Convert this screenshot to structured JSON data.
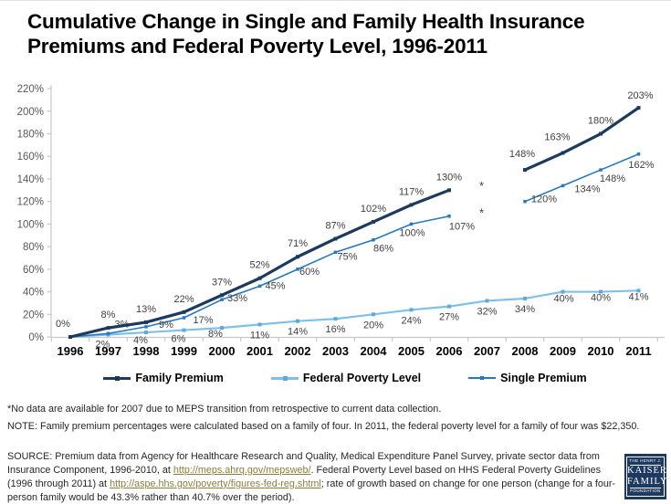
{
  "title": "Cumulative Change in Single and Family Health Insurance Premiums and Federal Poverty Level, 1996-2011",
  "colors": {
    "family": "#1B3A5E",
    "single": "#2779BE",
    "fpl": "#7EC0E9",
    "fpl_marker": "#5FA9DC",
    "axis": "#C8C8C8",
    "data_label": "#404040",
    "year_label": "#000000",
    "ytick_label": "#595959",
    "link": "#8C7D3A",
    "logo_bg": "#1E3A61"
  },
  "chart_data": {
    "type": "line",
    "title": "Cumulative Change in Single and Family Health Insurance Premiums and Federal Poverty Level, 1996-2011",
    "x": [
      "1996",
      "1997",
      "1998",
      "1999",
      "2000",
      "2001",
      "2002",
      "2003",
      "2004",
      "2005",
      "2006",
      "2007",
      "2008",
      "2009",
      "2010",
      "2011"
    ],
    "y_axis": {
      "min": 0,
      "max": 220,
      "step": 20,
      "tick_suffix": "%"
    },
    "grid": false,
    "legend_position": "bottom",
    "missing_data_note": "2007 values missing for premium series (shown as *)",
    "series": [
      {
        "id": "fpl",
        "name": "Federal Poverty Level",
        "color": "#7EC0E9",
        "marker_color": "#5FA9DC",
        "line_width": 2.2,
        "marker_size": 4,
        "labels_from": 1,
        "default_offset": [
          0,
          15
        ],
        "values": [
          0,
          2,
          4,
          6,
          8,
          11,
          14,
          16,
          20,
          24,
          27,
          32,
          34,
          40,
          40,
          41
        ],
        "label_offsets": {
          "1": [
            -6,
            14
          ],
          "2": [
            -6,
            12
          ],
          "3": [
            -6,
            13
          ],
          "4": [
            -7,
            10
          ],
          "13": [
            1,
            11
          ],
          "14": [
            0,
            10
          ],
          "15": [
            0,
            10
          ]
        }
      },
      {
        "id": "single",
        "name": "Single Premium",
        "color": "#2779BE",
        "marker_color": "#2779BE",
        "line_width": 1.6,
        "marker_size": 3.5,
        "labels_from": 1,
        "default_offset": [
          14,
          4
        ],
        "values": [
          0,
          3,
          9,
          17,
          33,
          45,
          60,
          75,
          86,
          100,
          107,
          null,
          120,
          134,
          148,
          162
        ],
        "label_offsets": {
          "1": [
            15,
            -7
          ],
          "2": [
            22,
            1
          ],
          "3": [
            21,
            6
          ],
          "4": [
            17,
            2
          ],
          "5": [
            17,
            3
          ],
          "6": [
            13,
            6
          ],
          "7": [
            13,
            8
          ],
          "8": [
            11,
            13
          ],
          "9": [
            1,
            13
          ],
          "10": [
            14,
            15
          ],
          "12": [
            21,
            1
          ],
          "13": [
            27,
            7
          ],
          "14": [
            13,
            13
          ],
          "15": [
            3,
            15
          ]
        }
      },
      {
        "id": "family",
        "name": "Family Premium",
        "color": "#1B3A5E",
        "marker_color": "#1B3A5E",
        "line_width": 3.2,
        "marker_size": 4,
        "labels_from": 0,
        "default_offset": [
          0,
          -11
        ],
        "values": [
          0,
          8,
          13,
          22,
          37,
          52,
          71,
          87,
          102,
          117,
          130,
          null,
          148,
          163,
          180,
          203
        ],
        "label_offsets": {
          "0": [
            -8,
            -11
          ],
          "12": [
            -3,
            -14
          ],
          "13": [
            -6,
            -14
          ],
          "15": [
            2,
            -10
          ]
        }
      }
    ],
    "annotations": [
      {
        "text": "*",
        "x": "2007",
        "value": 136
      },
      {
        "text": "*",
        "x": "2007",
        "value": 112
      }
    ]
  },
  "legend": {
    "items": [
      {
        "label": "Family Premium",
        "color": "#1B3A5E",
        "line_h": 3
      },
      {
        "label": "Federal Poverty Level",
        "color": "#7EC0E9",
        "line_h": 3
      },
      {
        "label": "Single Premium",
        "color": "#2779BE",
        "line_h": 2
      }
    ]
  },
  "footnotes": {
    "asterisk": "*No data are available for 2007 due to MEPS transition from retrospective to current data collection.",
    "note": "NOTE: Family premium percentages were calculated based on a family of four. In 2011, the federal poverty level for a family of four was $22,350.",
    "source": {
      "part1": "SOURCE: Premium data from Agency for Healthcare Research and Quality, Medical Expenditure Panel Survey, private sector data from Insurance Component, 1996-2010, at ",
      "link1": "http://meps.ahrq.gov/mepsweb/",
      "part2": ".  Federal Poverty Level based on HHS Federal Poverty Guidelines (1996 through 2011) at ",
      "link2": "http://aspe.hhs.gov/poverty/figures-fed-reg.shtml",
      "part3": "; rate of growth based on change for one person (change for a four-person family would be  43.3% rather than 40.7% over the period)."
    }
  },
  "logo": {
    "line1": "THE HENRY J.",
    "line2": "KAISER",
    "line3": "FAMILY",
    "line4": "FOUNDATION"
  }
}
